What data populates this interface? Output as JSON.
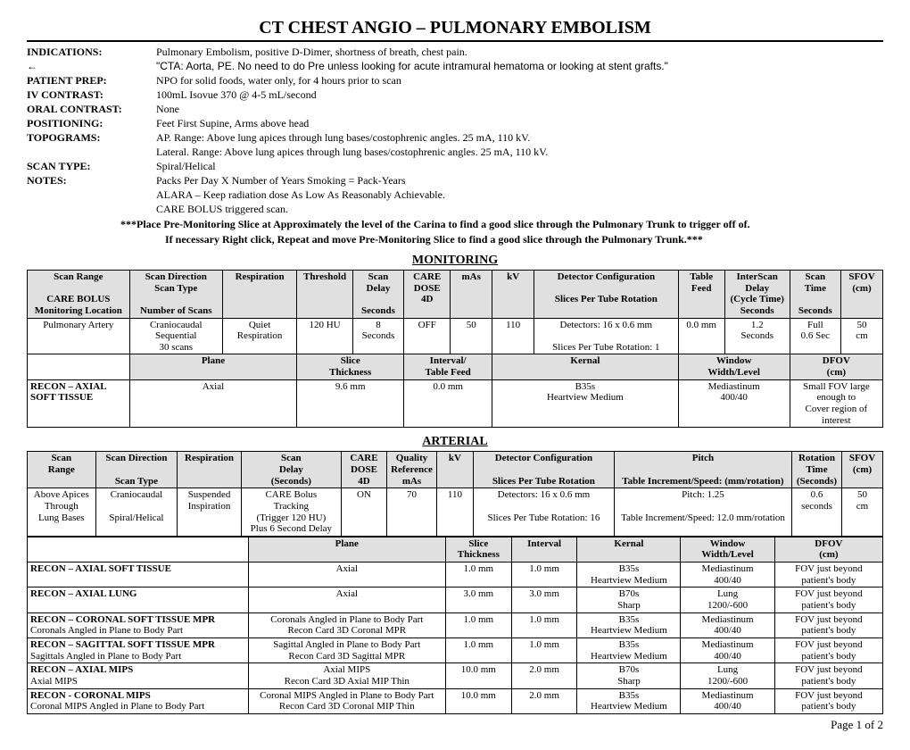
{
  "title": "CT CHEST ANGIO – PULMONARY EMBOLISM",
  "info": {
    "indications_label": "INDICATIONS:",
    "indications_text": "Pulmonary Embolism, positive D-Dimer, shortness of breath, chest pain.",
    "arrow": "←",
    "quote": "\"CTA: Aorta, PE. No need to do Pre unless looking for acute intramural hematoma or looking at stent grafts.\"",
    "prep_label": "PATIENT PREP:",
    "prep_text": "NPO for solid foods, water only, for 4 hours prior to scan",
    "iv_label": "IV CONTRAST:",
    "iv_text": "100mL Isovue 370 @ 4-5 mL/second",
    "oral_label": "ORAL CONTRAST:",
    "oral_text": "None",
    "pos_label": "POSITIONING:",
    "pos_text": "Feet First Supine, Arms above head",
    "topo_label": "TOPOGRAMS:",
    "topo_text1": "AP.  Range: Above lung apices through lung bases/costophrenic angles.  25 mA, 110 kV.",
    "topo_text2": "Lateral.  Range: Above lung apices through lung bases/costophrenic angles.  25 mA, 110 kV.",
    "scantype_label": "SCAN TYPE:",
    "scantype_text": "Spiral/Helical",
    "notes_label": "NOTES:",
    "notes_text1": "Packs Per Day X Number of Years Smoking = Pack-Years",
    "notes_text2": "ALARA – Keep radiation dose As Low As Reasonably Achievable.",
    "notes_text3": "CARE BOLUS triggered scan.",
    "note_bold1": "***Place Pre-Monitoring Slice at Approximately the level of the Carina to find a good slice through the Pulmonary Trunk to trigger off of.",
    "note_bold2": "If necessary Right click, Repeat and move Pre-Monitoring Slice to find a good slice through the Pulmonary Trunk.***"
  },
  "monitoring": {
    "heading": "MONITORING",
    "h1a": "Scan Range",
    "h1b": "CARE BOLUS",
    "h1c": "Monitoring Location",
    "h2a": "Scan Direction",
    "h2b": "Scan Type",
    "h2c": "Number of Scans",
    "h3": "Respiration",
    "h4": "Threshold",
    "h5a": "Scan",
    "h5b": "Delay",
    "h5c": "Seconds",
    "h6a": "CARE",
    "h6b": "DOSE",
    "h6c": "4D",
    "h7": "mAs",
    "h8": "kV",
    "h9a": "Detector Configuration",
    "h9b": "Slices Per Tube Rotation",
    "h10a": "Table",
    "h10b": "Feed",
    "h11a": "InterScan",
    "h11b": "Delay",
    "h11c": "(Cycle Time)",
    "h11d": "Seconds",
    "h12a": "Scan",
    "h12b": "Time",
    "h12c": "Seconds",
    "h13a": "SFOV",
    "h13b": "(cm)",
    "r1c1": "Pulmonary Artery",
    "r1c2a": "Craniocaudal",
    "r1c2b": "Sequential",
    "r1c2c": "30 scans",
    "r1c3a": "Quiet",
    "r1c3b": "Respiration",
    "r1c4": "120 HU",
    "r1c5a": "8",
    "r1c5b": "Seconds",
    "r1c6": "OFF",
    "r1c7": "50",
    "r1c8": "110",
    "r1c9a": "Detectors: 16 x 0.6 mm",
    "r1c9b": "Slices Per Tube Rotation: 1",
    "r1c10": "0.0 mm",
    "r1c11a": "1.2",
    "r1c11b": "Seconds",
    "r1c12a": "Full",
    "r1c12b": "0.6 Sec",
    "r1c13a": "50",
    "r1c13b": "cm",
    "sh1": "Plane",
    "sh2a": "Slice",
    "sh2b": "Thickness",
    "sh3a": "Interval/",
    "sh3b": "Table Feed",
    "sh4": "Kernal",
    "sh5a": "Window",
    "sh5b": "Width/Level",
    "sh6a": "DFOV",
    "sh6b": "(cm)",
    "sr1c0": "RECON – AXIAL SOFT TISSUE",
    "sr1c1": "Axial",
    "sr1c2": "9.6 mm",
    "sr1c3": "0.0 mm",
    "sr1c4a": "B35s",
    "sr1c4b": "Heartview Medium",
    "sr1c5a": "Mediastinum",
    "sr1c5b": "400/40",
    "sr1c6a": "Small FOV large enough to",
    "sr1c6b": "Cover region of interest"
  },
  "arterial": {
    "heading": "ARTERIAL",
    "h1a": "Scan",
    "h1b": "Range",
    "h2a": "Scan Direction",
    "h2b": "Scan Type",
    "h3": "Respiration",
    "h4a": "Scan",
    "h4b": "Delay",
    "h4c": "(Seconds)",
    "h5a": "CARE",
    "h5b": "DOSE",
    "h5c": "4D",
    "h6a": "Quality",
    "h6b": "Reference",
    "h6c": "mAs",
    "h7": "kV",
    "h8a": "Detector Configuration",
    "h8b": "Slices Per Tube Rotation",
    "h9a": "Pitch",
    "h9b": "Table Increment/Speed: (mm/rotation)",
    "h10a": "Rotation",
    "h10b": "Time",
    "h10c": "(Seconds)",
    "h11a": "SFOV",
    "h11b": "(cm)",
    "r1c1a": "Above Apices",
    "r1c1b": "Through",
    "r1c1c": "Lung Bases",
    "r1c2a": "Craniocaudal",
    "r1c2b": "Spiral/Helical",
    "r1c3a": "Suspended",
    "r1c3b": "Inspiration",
    "r1c4a": "CARE Bolus",
    "r1c4b": "Tracking",
    "r1c4c": "(Trigger 120 HU)",
    "r1c4d": "Plus 6 Second Delay",
    "r1c5": "ON",
    "r1c6": "70",
    "r1c7": "110",
    "r1c8a": "Detectors: 16 x 0.6 mm",
    "r1c8b": "Slices Per Tube Rotation: 16",
    "r1c9a": "Pitch:  1.25",
    "r1c9b": "Table Increment/Speed: 12.0 mm/rotation",
    "r1c10a": "0.6",
    "r1c10b": "seconds",
    "r1c11a": "50",
    "r1c11b": "cm",
    "sh1": "Plane",
    "sh2a": "Slice",
    "sh2b": "Thickness",
    "sh3": "Interval",
    "sh4": "Kernal",
    "sh5a": "Window",
    "sh5b": "Width/Level",
    "sh6a": "DFOV",
    "sh6b": "(cm)",
    "rows": [
      {
        "label": "RECON – AXIAL SOFT TISSUE",
        "sub": "",
        "plane": "Axial",
        "planesub": "",
        "slice": "1.0 mm",
        "interval": "1.0 mm",
        "k1": "B35s",
        "k2": "Heartview Medium",
        "w1": "Mediastinum",
        "w2": "400/40",
        "d1": "FOV just beyond",
        "d2": "patient's body"
      },
      {
        "label": "RECON – AXIAL LUNG",
        "sub": "",
        "plane": "Axial",
        "planesub": "",
        "slice": "3.0 mm",
        "interval": "3.0 mm",
        "k1": "B70s",
        "k2": "Sharp",
        "w1": "Lung",
        "w2": "1200/-600",
        "d1": "FOV just beyond",
        "d2": "patient's body"
      },
      {
        "label": "RECON – CORONAL SOFT TISSUE MPR",
        "sub": "Coronals Angled in Plane to Body Part",
        "plane": "Coronals Angled in Plane to Body Part",
        "planesub": "Recon Card 3D Coronal MPR",
        "slice": "1.0 mm",
        "interval": "1.0 mm",
        "k1": "B35s",
        "k2": "Heartview Medium",
        "w1": "Mediastinum",
        "w2": "400/40",
        "d1": "FOV just beyond",
        "d2": "patient's body"
      },
      {
        "label": "RECON – SAGITTAL SOFT TISSUE MPR",
        "sub": "Sagittals Angled in Plane to Body Part",
        "plane": "Sagittal Angled in Plane to Body Part",
        "planesub": "Recon Card 3D Sagittal MPR",
        "slice": "1.0 mm",
        "interval": "1.0 mm",
        "k1": "B35s",
        "k2": "Heartview Medium",
        "w1": "Mediastinum",
        "w2": "400/40",
        "d1": "FOV just beyond",
        "d2": "patient's body"
      },
      {
        "label": "RECON – AXIAL MIPS",
        "sub": "Axial MIPS",
        "plane": "Axial MIPS",
        "planesub": "Recon Card 3D Axial MIP Thin",
        "slice": "10.0 mm",
        "interval": "2.0 mm",
        "k1": "B70s",
        "k2": "Sharp",
        "w1": "Lung",
        "w2": "1200/-600",
        "d1": "FOV just beyond",
        "d2": "patient's body"
      },
      {
        "label": "RECON - CORONAL MIPS",
        "sub": "Coronal MIPS Angled in Plane to Body Part",
        "plane": "Coronal MIPS Angled in Plane to Body Part",
        "planesub": "Recon Card 3D Coronal MIP Thin",
        "slice": "10.0 mm",
        "interval": "2.0 mm",
        "k1": "B35s",
        "k2": "Heartview Medium",
        "w1": "Mediastinum",
        "w2": "400/40",
        "d1": "FOV just beyond",
        "d2": "patient's body"
      }
    ]
  },
  "page": "Page 1 of 2"
}
